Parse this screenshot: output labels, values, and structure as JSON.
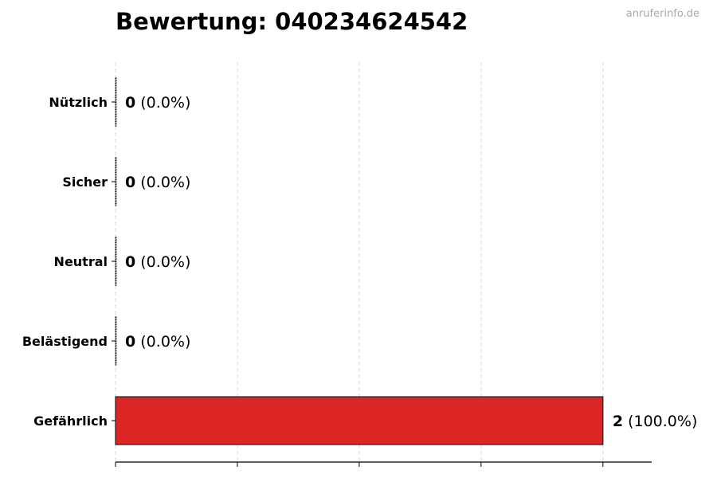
{
  "title": "Bewertung: 040234624542",
  "watermark": "anruferinfo.de",
  "chart_data": {
    "type": "bar",
    "orientation": "horizontal",
    "title": "Bewertung: 040234624542",
    "xlabel": "",
    "ylabel": "",
    "categories": [
      "Nützlich",
      "Sicher",
      "Neutral",
      "Belästigend",
      "Gefährlich"
    ],
    "values": [
      0,
      0,
      0,
      0,
      2
    ],
    "value_labels": [
      "0",
      "0",
      "0",
      "0",
      "2"
    ],
    "percent_labels": [
      "(0.0%)",
      "(0.0%)",
      "(0.0%)",
      "(0.0%)",
      "(100.0%)"
    ],
    "xlim": [
      0,
      2.2
    ],
    "xticks": [
      0,
      0.5,
      1,
      1.5,
      2
    ],
    "grid": "x-dashed",
    "bar_color": "#dc2626",
    "edge_color": "#222222"
  }
}
